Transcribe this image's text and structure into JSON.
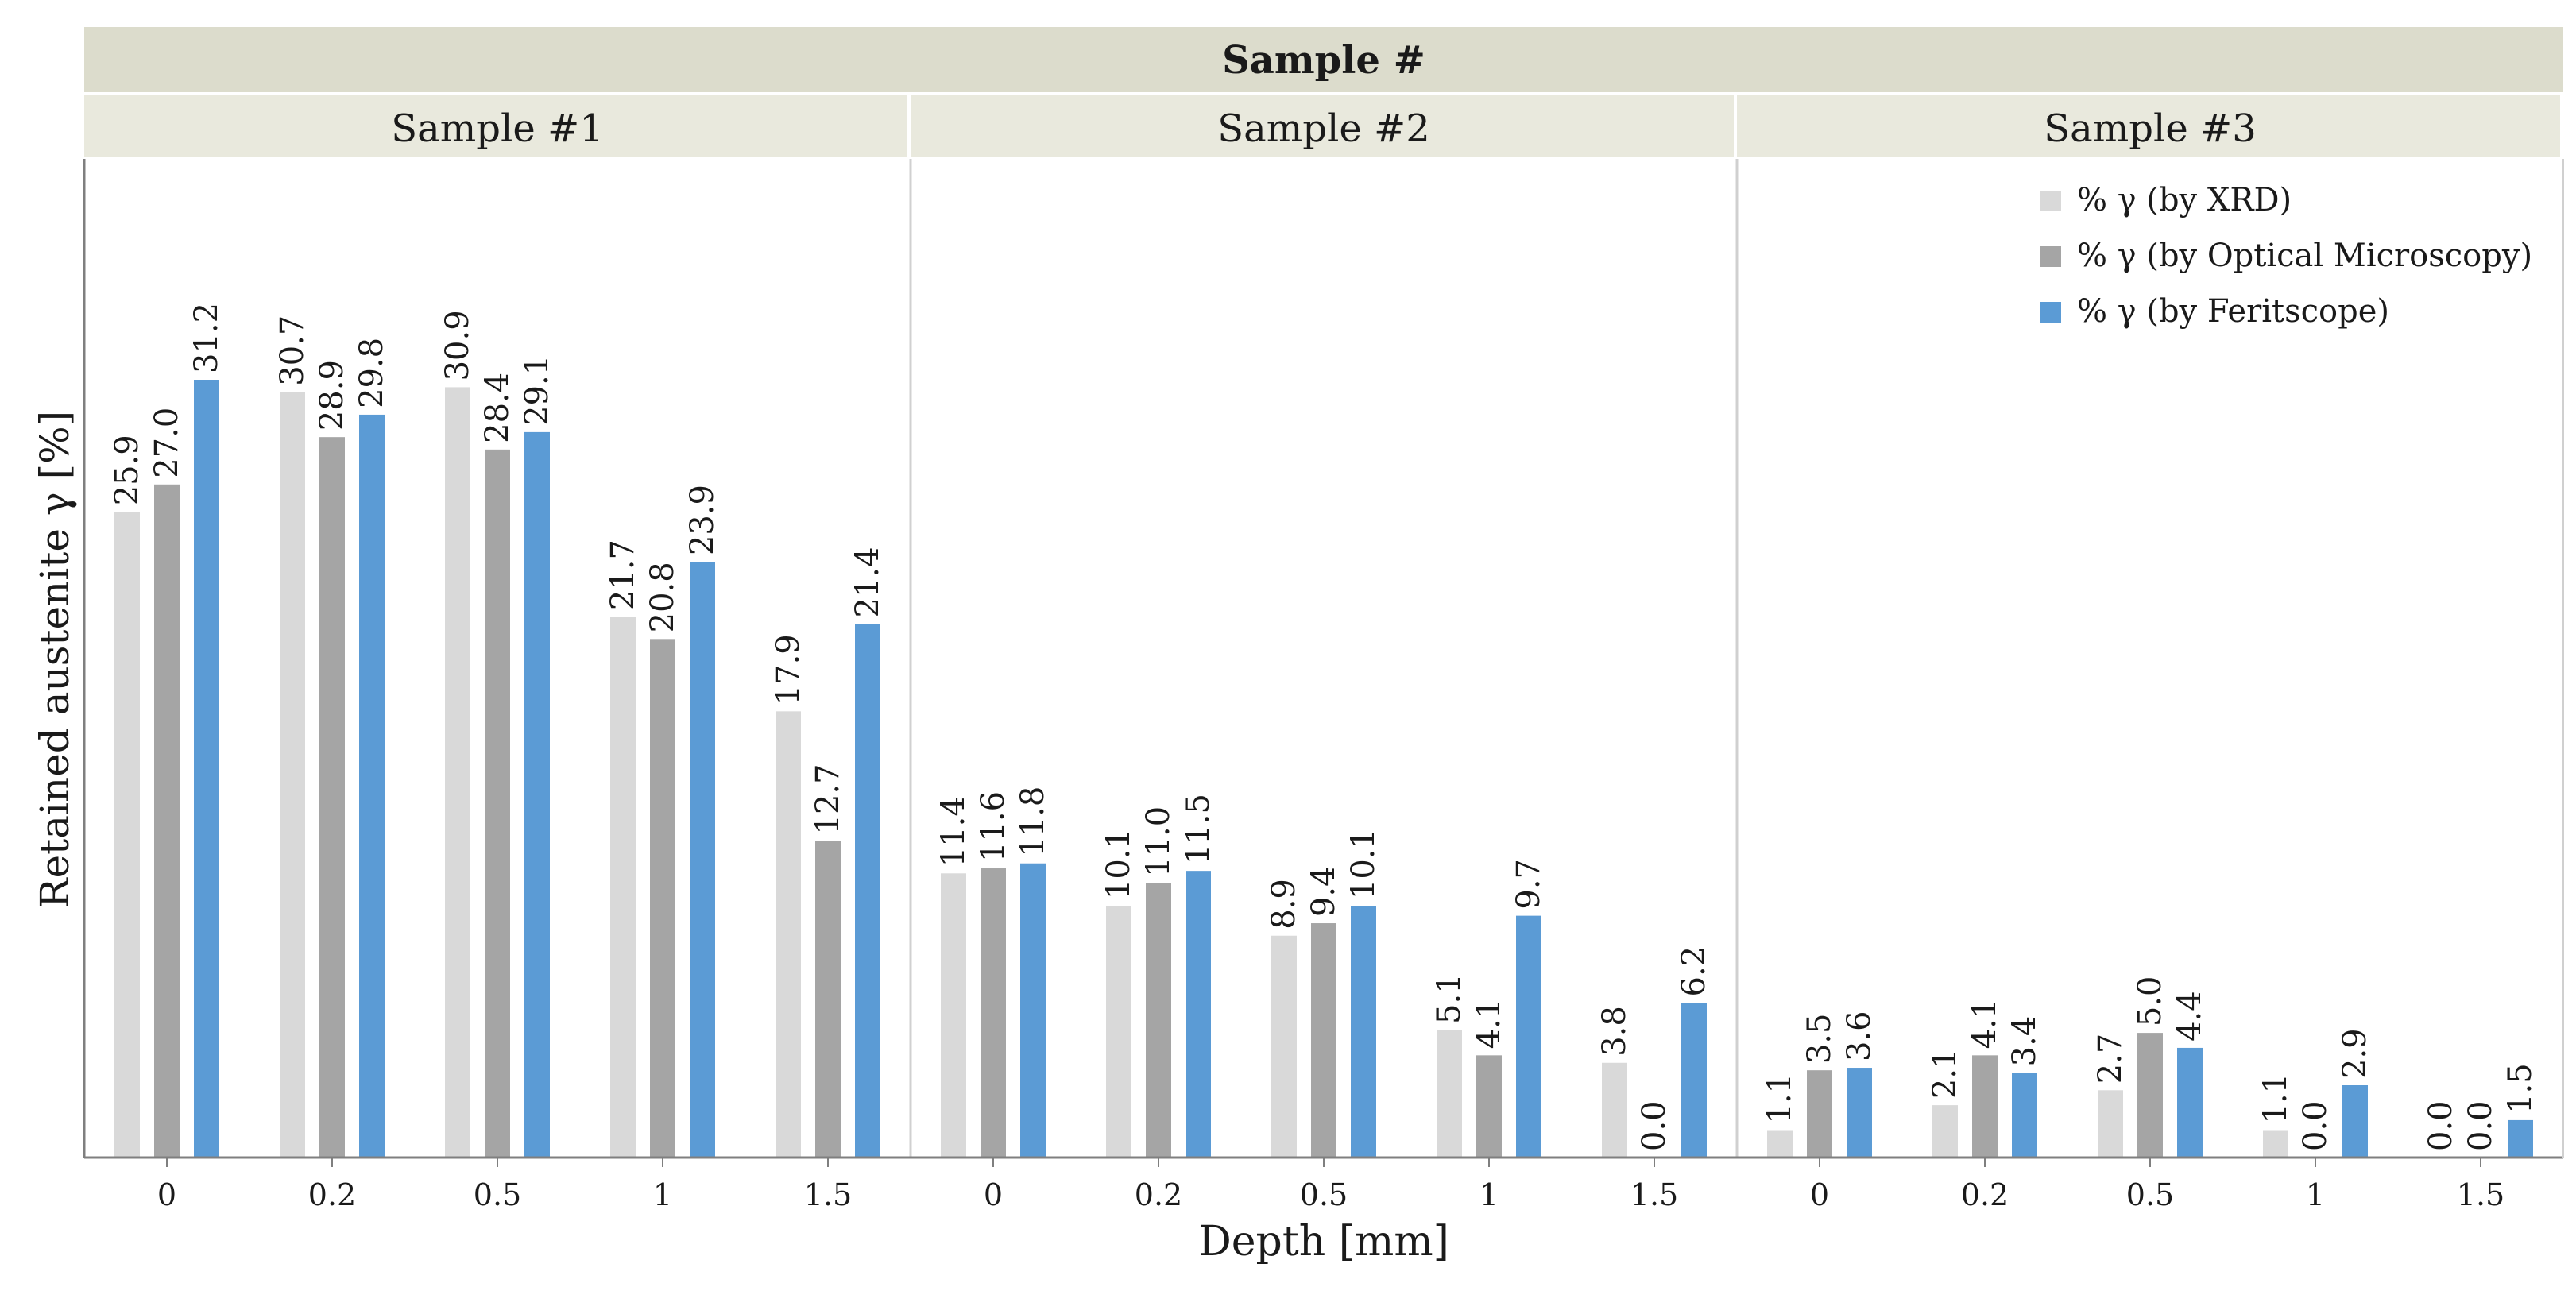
{
  "chart_data": {
    "type": "bar",
    "title": "Sample #",
    "xlabel": "Depth [mm]",
    "ylabel": "Retained austenite γ [%]",
    "ylim": [
      0,
      36
    ],
    "grid": false,
    "legend_position": "top-right",
    "categories": [
      "0",
      "0.2",
      "0.5",
      "1",
      "1.5"
    ],
    "panels": [
      {
        "name": "Sample #1",
        "series": [
          {
            "name": "% γ (by XRD)",
            "values": [
              25.9,
              30.7,
              30.9,
              21.7,
              17.9
            ]
          },
          {
            "name": "% γ (by Optical Microscopy)",
            "values": [
              27.0,
              28.9,
              28.4,
              20.8,
              12.7
            ]
          },
          {
            "name": "% γ (by Feritscope)",
            "values": [
              31.2,
              29.8,
              29.1,
              23.9,
              21.4
            ]
          }
        ]
      },
      {
        "name": "Sample #2",
        "series": [
          {
            "name": "% γ (by XRD)",
            "values": [
              11.4,
              10.1,
              8.9,
              5.1,
              3.8
            ]
          },
          {
            "name": "% γ (by Optical Microscopy)",
            "values": [
              11.6,
              11.0,
              9.4,
              4.1,
              0.0
            ]
          },
          {
            "name": "% γ (by Feritscope)",
            "values": [
              11.8,
              11.5,
              10.1,
              9.7,
              6.2
            ]
          }
        ]
      },
      {
        "name": "Sample #3",
        "series": [
          {
            "name": "% γ (by XRD)",
            "values": [
              1.1,
              2.1,
              2.7,
              1.1,
              0.0
            ]
          },
          {
            "name": "% γ (by Optical Microscopy)",
            "values": [
              3.5,
              4.1,
              5.0,
              0.0,
              0.0
            ]
          },
          {
            "name": "% γ (by Feritscope)",
            "values": [
              3.6,
              3.4,
              4.4,
              2.9,
              1.5
            ]
          }
        ]
      }
    ],
    "series_colors": [
      "#d9d9d9",
      "#a5a5a5",
      "#5b9bd5"
    ]
  },
  "colors": {
    "header_top": "#dcdccc",
    "header_panel": "#e9e9dd",
    "divider": "#d0d0d0"
  }
}
